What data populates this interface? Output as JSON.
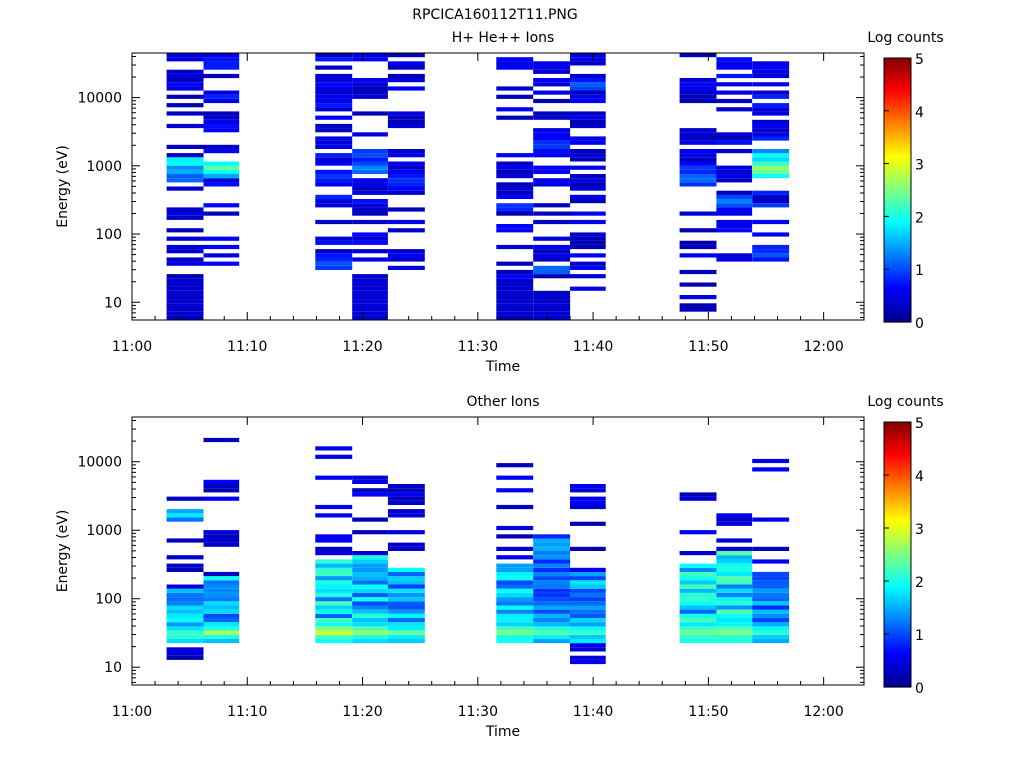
{
  "figure_title": "RPCICA160112T11.PNG",
  "colormap": [
    "#00008f",
    "#0000ff",
    "#007fff",
    "#00ffff",
    "#7fff7f",
    "#ffff00",
    "#ff7f00",
    "#ff0000",
    "#7f0000"
  ],
  "chart_data": [
    {
      "type": "heatmap",
      "title": "H+ He++ Ions",
      "xlabel": "Time",
      "ylabel": "Energy (eV)",
      "x_ticks": [
        "11:00",
        "11:10",
        "11:20",
        "11:30",
        "11:40",
        "11:50",
        "12:00"
      ],
      "x_tick_minutes": [
        0,
        10,
        20,
        30,
        40,
        50,
        60
      ],
      "xlim_minutes": [
        0,
        63.5
      ],
      "y_scale": "log",
      "ylim": [
        5.5,
        45000
      ],
      "y_ticks": [
        10,
        100,
        1000,
        10000
      ],
      "y_tick_labels": [
        "10",
        "100",
        "1000",
        "10000"
      ],
      "colorbar": {
        "label": "Log counts",
        "range": [
          0,
          5
        ],
        "ticks": [
          "0",
          "1",
          "2",
          "3",
          "4",
          "5"
        ]
      },
      "columns": [
        {
          "t_start": 3.0,
          "t_end": 6.2,
          "emin": 5.5,
          "emax": 42000,
          "density": 0.5,
          "base_level": 0.35,
          "features": [
            {
              "e": 1150,
              "width": 0.08,
              "level": 2.2
            },
            {
              "e": 850,
              "width": 0.1,
              "level": 1.6
            },
            {
              "e": 650,
              "width": 0.08,
              "level": 1.3
            },
            {
              "e": 12,
              "width": 0.3,
              "level": 0.2
            }
          ]
        },
        {
          "t_start": 6.2,
          "t_end": 9.3,
          "emin": 35,
          "emax": 42000,
          "density": 0.5,
          "base_level": 0.45,
          "features": [
            {
              "e": 950,
              "width": 0.1,
              "level": 2.4
            },
            {
              "e": 800,
              "width": 0.08,
              "level": 2.0
            }
          ]
        },
        {
          "t_start": 15.9,
          "t_end": 19.1,
          "emin": 30,
          "emax": 42000,
          "density": 0.55,
          "base_level": 0.45,
          "features": [
            {
              "e": 35,
              "width": 0.06,
              "level": 1.2
            },
            {
              "e": 700,
              "width": 0.12,
              "level": 0.9
            }
          ]
        },
        {
          "t_start": 19.1,
          "t_end": 22.2,
          "emin": 5.5,
          "emax": 42000,
          "density": 0.55,
          "base_level": 0.4,
          "features": [
            {
              "e": 900,
              "width": 0.1,
              "level": 1.4
            },
            {
              "e": 1500,
              "width": 0.1,
              "level": 1.1
            },
            {
              "e": 12,
              "width": 0.3,
              "level": 0.2
            }
          ]
        },
        {
          "t_start": 22.2,
          "t_end": 25.4,
          "emin": 30,
          "emax": 42000,
          "density": 0.6,
          "base_level": 0.35,
          "features": [
            {
              "e": 600,
              "width": 0.15,
              "level": 0.9
            }
          ]
        },
        {
          "t_start": 31.6,
          "t_end": 34.8,
          "emin": 5.5,
          "emax": 38000,
          "density": 0.55,
          "base_level": 0.35,
          "features": [
            {
              "e": 250,
              "width": 0.08,
              "level": 1.0
            },
            {
              "e": 12,
              "width": 0.3,
              "level": 0.2
            }
          ]
        },
        {
          "t_start": 34.8,
          "t_end": 38.0,
          "emin": 5.5,
          "emax": 40000,
          "density": 0.55,
          "base_level": 0.35,
          "features": [
            {
              "e": 30,
              "width": 0.08,
              "level": 1.3
            },
            {
              "e": 2000,
              "width": 0.1,
              "level": 1.0
            },
            {
              "e": 7,
              "width": 0.2,
              "level": 0.2
            }
          ]
        },
        {
          "t_start": 38.0,
          "t_end": 41.1,
          "emin": 15,
          "emax": 42000,
          "density": 0.6,
          "base_level": 0.35,
          "features": [
            {
              "e": 15000,
              "width": 0.08,
              "level": 1.2
            }
          ]
        },
        {
          "t_start": 47.5,
          "t_end": 50.7,
          "emin": 7.5,
          "emax": 42000,
          "density": 0.5,
          "base_level": 0.35,
          "features": [
            {
              "e": 650,
              "width": 0.1,
              "level": 1.3
            },
            {
              "e": 900,
              "width": 0.08,
              "level": 1.0
            }
          ]
        },
        {
          "t_start": 50.7,
          "t_end": 53.8,
          "emin": 40,
          "emax": 42000,
          "density": 0.5,
          "base_level": 0.4,
          "features": [
            {
              "e": 300,
              "width": 0.1,
              "level": 1.3
            }
          ]
        },
        {
          "t_start": 53.8,
          "t_end": 57.0,
          "emin": 40,
          "emax": 40000,
          "density": 0.55,
          "base_level": 0.5,
          "features": [
            {
              "e": 900,
              "width": 0.15,
              "level": 2.7
            },
            {
              "e": 1400,
              "width": 0.08,
              "level": 2.0
            },
            {
              "e": 50,
              "width": 0.08,
              "level": 1.1
            }
          ]
        }
      ]
    },
    {
      "type": "heatmap",
      "title": "Other Ions",
      "xlabel": "Time",
      "ylabel": "Energy (eV)",
      "x_ticks": [
        "11:00",
        "11:10",
        "11:20",
        "11:30",
        "11:40",
        "11:50",
        "12:00"
      ],
      "x_tick_minutes": [
        0,
        10,
        20,
        30,
        40,
        50,
        60
      ],
      "xlim_minutes": [
        0,
        63.5
      ],
      "y_scale": "log",
      "ylim": [
        5.5,
        45000
      ],
      "y_ticks": [
        10,
        100,
        1000,
        10000
      ],
      "y_tick_labels": [
        "10",
        "100",
        "1000",
        "10000"
      ],
      "colorbar": {
        "label": "Log counts",
        "range": [
          0,
          5
        ],
        "ticks": [
          "0",
          "1",
          "2",
          "3",
          "4",
          "5"
        ]
      },
      "columns": [
        {
          "t_start": 3.0,
          "t_end": 6.2,
          "emin": 10,
          "emax": 4500,
          "density": 0.3,
          "base_level": 0.3,
          "band": [
            21,
            140,
            1.6
          ],
          "features": [
            {
              "e": 30,
              "width": 0.15,
              "level": 2.3
            },
            {
              "e": 1700,
              "width": 0.08,
              "level": 1.9
            }
          ]
        },
        {
          "t_start": 6.2,
          "t_end": 9.3,
          "emin": 21,
          "emax": 26000,
          "density": 0.25,
          "base_level": 0.35,
          "band": [
            21,
            220,
            1.5
          ],
          "features": [
            {
              "e": 32,
              "width": 0.1,
              "level": 2.7
            }
          ]
        },
        {
          "t_start": 15.9,
          "t_end": 19.1,
          "emin": 21,
          "emax": 17000,
          "density": 0.3,
          "base_level": 0.35,
          "band": [
            21,
            350,
            1.8
          ],
          "features": [
            {
              "e": 33,
              "width": 0.12,
              "level": 3.0
            },
            {
              "e": 28,
              "width": 0.08,
              "level": 2.3
            }
          ]
        },
        {
          "t_start": 19.1,
          "t_end": 22.2,
          "emin": 21,
          "emax": 7500,
          "density": 0.3,
          "base_level": 0.35,
          "band": [
            21,
            450,
            1.6
          ],
          "features": [
            {
              "e": 33,
              "width": 0.12,
              "level": 2.7
            }
          ]
        },
        {
          "t_start": 22.2,
          "t_end": 25.4,
          "emin": 21,
          "emax": 6500,
          "density": 0.3,
          "base_level": 0.35,
          "band": [
            21,
            300,
            1.5
          ],
          "features": [
            {
              "e": 32,
              "width": 0.1,
              "level": 2.4
            }
          ]
        },
        {
          "t_start": 31.6,
          "t_end": 34.8,
          "emin": 21,
          "emax": 14000,
          "density": 0.2,
          "base_level": 0.35,
          "band": [
            21,
            320,
            1.5
          ],
          "features": [
            {
              "e": 33,
              "width": 0.12,
              "level": 2.6
            },
            {
              "e": 25,
              "width": 0.06,
              "level": 2.2
            }
          ]
        },
        {
          "t_start": 34.8,
          "t_end": 38.0,
          "emin": 21,
          "emax": 850,
          "density": 0.3,
          "base_level": 0.35,
          "band": [
            21,
            850,
            1.3
          ],
          "features": [
            {
              "e": 33,
              "width": 0.12,
              "level": 2.4
            }
          ]
        },
        {
          "t_start": 38.0,
          "t_end": 41.1,
          "emin": 5.5,
          "emax": 6500,
          "density": 0.25,
          "base_level": 0.35,
          "band": [
            21,
            260,
            1.4
          ],
          "features": [
            {
              "e": 33,
              "width": 0.1,
              "level": 2.3
            }
          ]
        },
        {
          "t_start": 47.5,
          "t_end": 50.7,
          "emin": 21,
          "emax": 5500,
          "density": 0.3,
          "base_level": 0.35,
          "band": [
            21,
            320,
            1.8
          ],
          "features": [
            {
              "e": 33,
              "width": 0.15,
              "level": 2.5
            }
          ]
        },
        {
          "t_start": 50.7,
          "t_end": 53.8,
          "emin": 21,
          "emax": 4500,
          "density": 0.3,
          "base_level": 0.35,
          "band": [
            21,
            520,
            1.8
          ],
          "features": [
            {
              "e": 33,
              "width": 0.15,
              "level": 2.6
            }
          ]
        },
        {
          "t_start": 53.8,
          "t_end": 57.0,
          "emin": 21,
          "emax": 15000,
          "density": 0.3,
          "base_level": 0.35,
          "band": [
            21,
            230,
            1.3
          ],
          "features": [
            {
              "e": 33,
              "width": 0.12,
              "level": 2.2
            }
          ]
        }
      ]
    }
  ]
}
